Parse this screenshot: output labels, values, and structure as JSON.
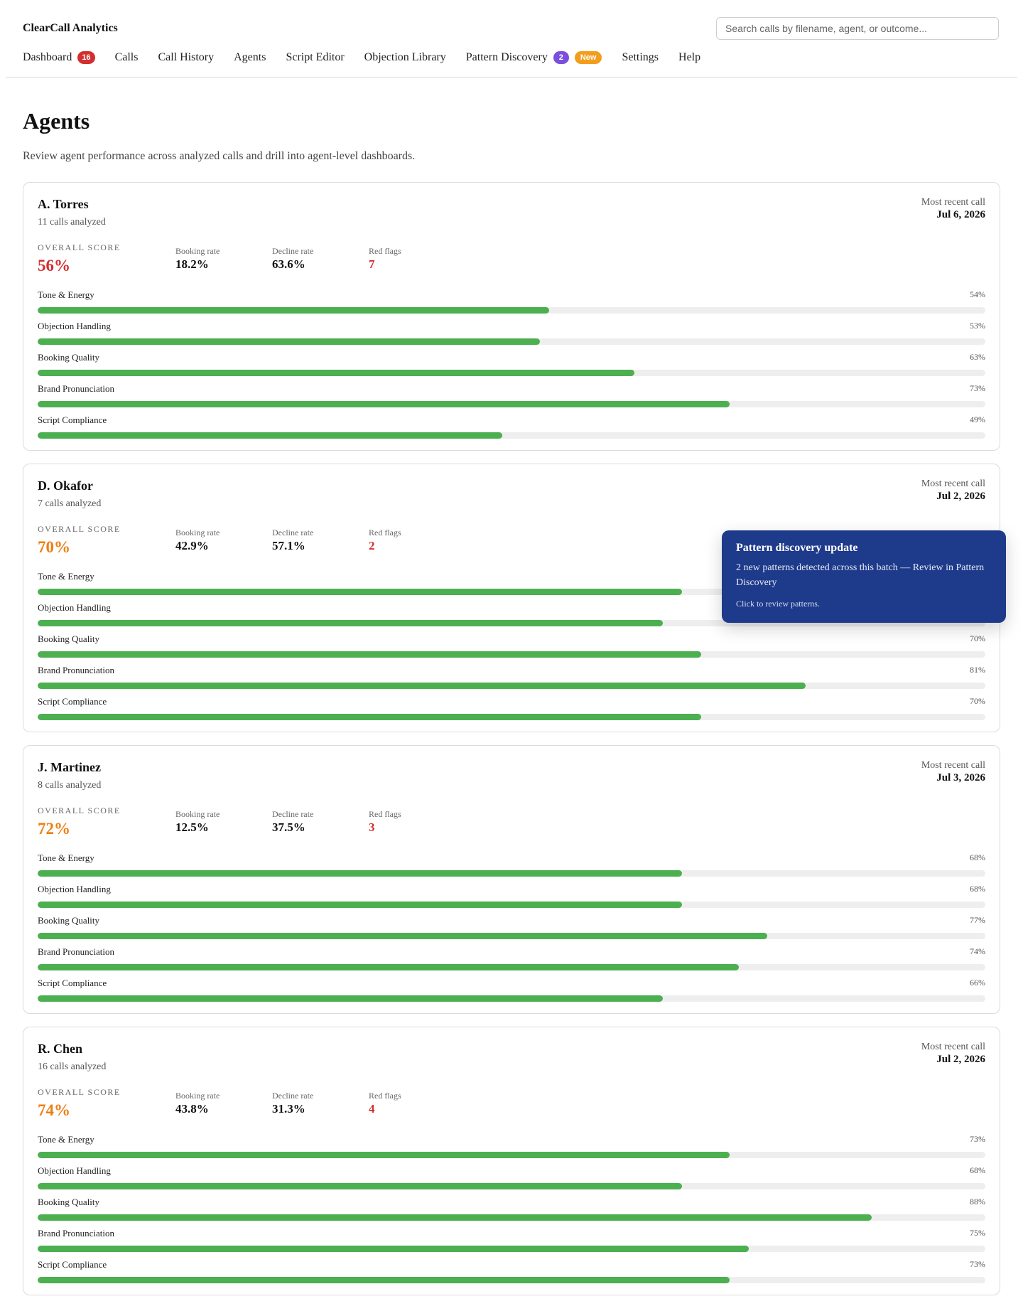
{
  "app": {
    "brand": "ClearCall Analytics",
    "search_placeholder": "Search calls by filename, agent, or outcome..."
  },
  "nav": {
    "items": [
      {
        "label": "Dashboard",
        "badge": "16"
      },
      {
        "label": "Calls"
      },
      {
        "label": "Call History"
      },
      {
        "label": "Agents"
      },
      {
        "label": "Script Editor"
      },
      {
        "label": "Objection Library"
      },
      {
        "label": "Pattern Discovery",
        "badge": "2",
        "tag": "New"
      },
      {
        "label": "Settings"
      },
      {
        "label": "Help"
      }
    ]
  },
  "page": {
    "title": "Agents",
    "subtitle": "Review agent performance across analyzed calls and drill into agent-level dashboards."
  },
  "labels": {
    "most_recent_call": "Most recent call",
    "overall_score": "OVERALL SCORE",
    "booking_rate": "Booking rate",
    "decline_rate": "Decline rate",
    "red_flags": "Red flags"
  },
  "agents": [
    {
      "name": "A. Torres",
      "calls": "11 calls analyzed",
      "most_recent": "Jul 6, 2026",
      "overall": "56%",
      "overall_color": "#d32f2f",
      "booking_rate": "18.2%",
      "decline_rate": "63.6%",
      "red_flags": "7",
      "metrics": [
        {
          "label": "Tone & Energy",
          "value": "54%",
          "pct": 54
        },
        {
          "label": "Objection Handling",
          "value": "53%",
          "pct": 53
        },
        {
          "label": "Booking Quality",
          "value": "63%",
          "pct": 63
        },
        {
          "label": "Brand Pronunciation",
          "value": "73%",
          "pct": 73
        },
        {
          "label": "Script Compliance",
          "value": "49%",
          "pct": 49
        }
      ]
    },
    {
      "name": "D. Okafor",
      "calls": "7 calls analyzed",
      "most_recent": "Jul 2, 2026",
      "overall": "70%",
      "overall_color": "#ef7d12",
      "booking_rate": "42.9%",
      "decline_rate": "57.1%",
      "red_flags": "2",
      "metrics": [
        {
          "label": "Tone & Energy",
          "value": "68%",
          "pct": 68
        },
        {
          "label": "Objection Handling",
          "value": "66%",
          "pct": 66
        },
        {
          "label": "Booking Quality",
          "value": "70%",
          "pct": 70
        },
        {
          "label": "Brand Pronunciation",
          "value": "81%",
          "pct": 81
        },
        {
          "label": "Script Compliance",
          "value": "70%",
          "pct": 70
        }
      ]
    },
    {
      "name": "J. Martinez",
      "calls": "8 calls analyzed",
      "most_recent": "Jul 3, 2026",
      "overall": "72%",
      "overall_color": "#ef7d12",
      "booking_rate": "12.5%",
      "decline_rate": "37.5%",
      "red_flags": "3",
      "metrics": [
        {
          "label": "Tone & Energy",
          "value": "68%",
          "pct": 68
        },
        {
          "label": "Objection Handling",
          "value": "68%",
          "pct": 68
        },
        {
          "label": "Booking Quality",
          "value": "77%",
          "pct": 77
        },
        {
          "label": "Brand Pronunciation",
          "value": "74%",
          "pct": 74
        },
        {
          "label": "Script Compliance",
          "value": "66%",
          "pct": 66
        }
      ]
    },
    {
      "name": "R. Chen",
      "calls": "16 calls analyzed",
      "most_recent": "Jul 2, 2026",
      "overall": "74%",
      "overall_color": "#ef7d12",
      "booking_rate": "43.8%",
      "decline_rate": "31.3%",
      "red_flags": "4",
      "metrics": [
        {
          "label": "Tone & Energy",
          "value": "73%",
          "pct": 73
        },
        {
          "label": "Objection Handling",
          "value": "68%",
          "pct": 68
        },
        {
          "label": "Booking Quality",
          "value": "88%",
          "pct": 88
        },
        {
          "label": "Brand Pronunciation",
          "value": "75%",
          "pct": 75
        },
        {
          "label": "Script Compliance",
          "value": "73%",
          "pct": 73
        }
      ]
    }
  ],
  "toast": {
    "title": "Pattern discovery update",
    "body": "2 new patterns detected across this batch — Review in Pattern Discovery",
    "hint": "Click to review patterns."
  }
}
